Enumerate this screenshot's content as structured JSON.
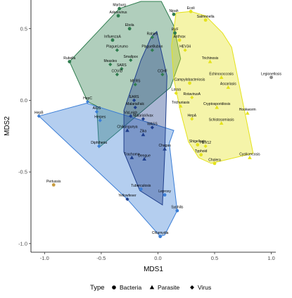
{
  "chart_data": {
    "type": "scatter",
    "title": "",
    "xlabel": "MDS1",
    "ylabel": "MDS2",
    "xlim": [
      -1.12,
      1.04
    ],
    "ylim": [
      -1.06,
      0.7
    ],
    "x_ticks": [
      -1.0,
      -0.5,
      0.0,
      0.5,
      1.0
    ],
    "x_tick_labels": [
      "-1.0",
      "-0.5",
      "0.0",
      "0.5",
      "1.0"
    ],
    "y_ticks": [
      -1.0,
      -0.5,
      0.0,
      0.5
    ],
    "y_tick_labels": [
      "-1.0",
      "-0.5",
      "0.0",
      "0.5"
    ],
    "grid": false,
    "legend": {
      "title": "Type",
      "position": "bottom",
      "entries": [
        {
          "label": "Bacteria",
          "shape": "circle"
        },
        {
          "label": "Parasite",
          "shape": "triangle"
        },
        {
          "label": "Virus",
          "shape": "diamond"
        }
      ]
    },
    "hull_colors": {
      "green": "#2f7d4f",
      "blue": "#3b7ed6",
      "navy": "#1f3f8c",
      "yellow": "#e4e21c"
    },
    "hulls": [
      {
        "color": "green",
        "vertices": [
          [
            -0.78,
            0.27
          ],
          [
            -0.34,
            0.64
          ],
          [
            -0.15,
            0.69
          ],
          [
            0.03,
            0.69
          ],
          [
            0.14,
            0.52
          ],
          [
            0.2,
            0.29
          ],
          [
            0.11,
            0.09
          ],
          [
            -0.52,
            -0.33
          ],
          [
            -0.54,
            -0.04
          ],
          [
            -0.62,
            -0.01
          ]
        ]
      },
      {
        "color": "blue",
        "vertices": [
          [
            -1.05,
            -0.11
          ],
          [
            -0.63,
            -0.02
          ],
          [
            0.14,
            -0.21
          ],
          [
            0.1,
            -0.3
          ],
          [
            0.17,
            -0.77
          ],
          [
            0.06,
            -0.94
          ],
          [
            0.02,
            -0.95
          ],
          [
            -0.27,
            -0.69
          ]
        ]
      },
      {
        "color": "navy",
        "vertices": [
          [
            -0.15,
            0.28
          ],
          [
            -0.06,
            0.44
          ],
          [
            -0.01,
            0.48
          ],
          [
            0.08,
            0.17
          ],
          [
            0.06,
            -0.38
          ],
          [
            0.04,
            -0.73
          ],
          [
            -0.16,
            -0.63
          ],
          [
            -0.3,
            -0.36
          ],
          [
            -0.3,
            -0.07
          ]
        ]
      },
      {
        "color": "yellow",
        "vertices": [
          [
            0.12,
            0.38
          ],
          [
            0.16,
            0.61
          ],
          [
            0.29,
            0.62
          ],
          [
            0.42,
            0.59
          ],
          [
            0.57,
            0.47
          ],
          [
            0.65,
            0.37
          ],
          [
            0.84,
            -0.37
          ],
          [
            0.47,
            -0.44
          ],
          [
            0.36,
            -0.4
          ],
          [
            0.27,
            -0.29
          ],
          [
            0.2,
            -0.08
          ],
          [
            0.14,
            0.15
          ]
        ]
      }
    ],
    "series": [
      {
        "name": "Bacteria",
        "shape": "circle",
        "points": [
          {
            "label": "Marburg",
            "x": -0.34,
            "y": 0.64,
            "color": "#2f7d4f"
          },
          {
            "label": "Adenovirus",
            "x": -0.35,
            "y": 0.59,
            "color": "#2f7d4f"
          },
          {
            "label": "Nipah",
            "x": 0.14,
            "y": 0.6,
            "color": "#2f7d4f"
          },
          {
            "label": "Ebola",
            "x": -0.25,
            "y": 0.5,
            "color": "#2f7d4f"
          },
          {
            "label": "InfluenzaA",
            "x": -0.4,
            "y": 0.42,
            "color": "#2f7d4f"
          },
          {
            "label": "Rubella",
            "x": -0.78,
            "y": 0.27,
            "color": "#2f7d4f"
          },
          {
            "label": "RVF",
            "x": 0.15,
            "y": 0.47,
            "color": "#2f7d4f"
          },
          {
            "label": "Ecoli",
            "x": 0.29,
            "y": 0.62,
            "color": "#e4e21c"
          },
          {
            "label": "Salmonella",
            "x": 0.42,
            "y": 0.56,
            "color": "#e4e21c"
          },
          {
            "label": "Legionellosis",
            "x": 1.0,
            "y": 0.16,
            "color": "#8a8a8a"
          },
          {
            "label": "Leprosy",
            "x": 0.06,
            "y": -0.66,
            "color": "#3b7ed6"
          },
          {
            "label": "Syphilis",
            "x": 0.17,
            "y": -0.77,
            "color": "#3b7ed6"
          },
          {
            "label": "Chlamydia",
            "x": 0.02,
            "y": -0.95,
            "color": "#3b7ed6"
          },
          {
            "label": "Pertussis",
            "x": -0.92,
            "y": -0.59,
            "color": "#c79b3f"
          },
          {
            "label": "Cholera",
            "x": 0.5,
            "y": -0.44,
            "color": "#e4e21c"
          },
          {
            "label": "Shigellosis",
            "x": 0.35,
            "y": -0.31,
            "color": "#e4e21c"
          },
          {
            "label": "Typhoid",
            "x": 0.38,
            "y": -0.38,
            "color": "#e4e21c"
          },
          {
            "label": "Campylobacteriosis",
            "x": 0.28,
            "y": 0.12,
            "color": "#e4e21c"
          },
          {
            "label": "Anthrax",
            "x": 0.19,
            "y": 0.42,
            "color": "#e4e21c"
          },
          {
            "label": "Tuberculosis",
            "x": -0.15,
            "y": -0.62,
            "color": "#3b7ed6"
          }
        ]
      },
      {
        "name": "Parasite",
        "shape": "triangle",
        "points": [
          {
            "label": "Trichinosis",
            "x": 0.46,
            "y": 0.27,
            "color": "#e4e21c"
          },
          {
            "label": "Echinococcosis",
            "x": 0.56,
            "y": 0.16,
            "color": "#e4e21c"
          },
          {
            "label": "Ascariasis",
            "x": 0.62,
            "y": 0.09,
            "color": "#e4e21c"
          },
          {
            "label": "Hookworm",
            "x": 0.79,
            "y": -0.09,
            "color": "#e4e21c"
          },
          {
            "label": "Cryptosporidiosis",
            "x": 0.52,
            "y": -0.05,
            "color": "#e4e21c"
          },
          {
            "label": "Schistosomiasis",
            "x": 0.56,
            "y": -0.16,
            "color": "#e4e21c"
          },
          {
            "label": "Cysticercosis",
            "x": 0.81,
            "y": -0.4,
            "color": "#e4e21c"
          },
          {
            "label": "Trichuriasis",
            "x": 0.2,
            "y": -0.04,
            "color": "#e4e21c"
          },
          {
            "label": "Chagas",
            "x": 0.06,
            "y": -0.34,
            "color": "#1f3f8c"
          },
          {
            "label": "Trachoma",
            "x": -0.23,
            "y": -0.4,
            "color": "#1f3f8c"
          },
          {
            "label": "Dengue",
            "x": -0.12,
            "y": -0.41,
            "color": "#1f3f8c"
          },
          {
            "label": "Zika",
            "x": -0.13,
            "y": -0.24,
            "color": "#1f3f8c"
          },
          {
            "label": "Chikungunya",
            "x": -0.27,
            "y": -0.21,
            "color": "#1f3f8c"
          }
        ]
      },
      {
        "name": "Virus",
        "shape": "diamond",
        "points": [
          {
            "label": "PlagueLeumo",
            "x": -0.36,
            "y": 0.35,
            "color": "#2f7d4f"
          },
          {
            "label": "Smallpox",
            "x": -0.24,
            "y": 0.28,
            "color": "#2f7d4f"
          },
          {
            "label": "Measles",
            "x": -0.42,
            "y": 0.25,
            "color": "#2f7d4f"
          },
          {
            "label": "SARS",
            "x": -0.32,
            "y": 0.22,
            "color": "#2f7d4f"
          },
          {
            "label": "COVID",
            "x": -0.36,
            "y": 0.18,
            "color": "#2f7d4f"
          },
          {
            "label": "Rabies",
            "x": -0.05,
            "y": 0.44,
            "color": "#2f7d4f"
          },
          {
            "label": "PlagueBubon",
            "x": -0.05,
            "y": 0.35,
            "color": "#2f7d4f"
          },
          {
            "label": "CCHF",
            "x": 0.04,
            "y": 0.18,
            "color": "#2f7d4f"
          },
          {
            "label": "MERS",
            "x": -0.2,
            "y": 0.11,
            "color": "#2f7d4f"
          },
          {
            "label": "HepC",
            "x": -0.62,
            "y": -0.01,
            "color": "#3b7ed6"
          },
          {
            "label": "AIDS",
            "x": -0.54,
            "y": -0.08,
            "color": "#3b7ed6"
          },
          {
            "label": "Herpes",
            "x": -0.51,
            "y": -0.14,
            "color": "#3b7ed6"
          },
          {
            "label": "HepB",
            "x": -1.05,
            "y": -0.11,
            "color": "#3b7ed6"
          },
          {
            "label": "Diphtheria",
            "x": -0.52,
            "y": -0.32,
            "color": "#3b7ed6"
          },
          {
            "label": "EARS",
            "x": -0.21,
            "y": 0.0,
            "color": "#1f3f8c"
          },
          {
            "label": "MalariaFalc",
            "x": -0.2,
            "y": -0.05,
            "color": "#1f3f8c"
          },
          {
            "label": "VisLeish",
            "x": -0.24,
            "y": -0.11,
            "color": "#1f3f8c"
          },
          {
            "label": "MalariaVivax",
            "x": -0.13,
            "y": -0.13,
            "color": "#1f3f8c"
          },
          {
            "label": "WASS",
            "x": -0.05,
            "y": -0.19,
            "color": "#1f3f8c"
          },
          {
            "label": "Yellowfever",
            "x": -0.27,
            "y": -0.69,
            "color": "#1f3f8c"
          },
          {
            "label": "Lassa",
            "x": 0.16,
            "y": 0.05,
            "color": "#e4e21c"
          },
          {
            "label": "HEV34",
            "x": 0.24,
            "y": 0.35,
            "color": "#e4e21c"
          },
          {
            "label": "RotavirusA",
            "x": 0.3,
            "y": 0.02,
            "color": "#e4e21c"
          },
          {
            "label": "HepA",
            "x": 0.3,
            "y": -0.13,
            "color": "#e4e21c"
          },
          {
            "label": "HEV12",
            "x": 0.42,
            "y": -0.32,
            "color": "#e4e21c"
          }
        ]
      }
    ]
  }
}
